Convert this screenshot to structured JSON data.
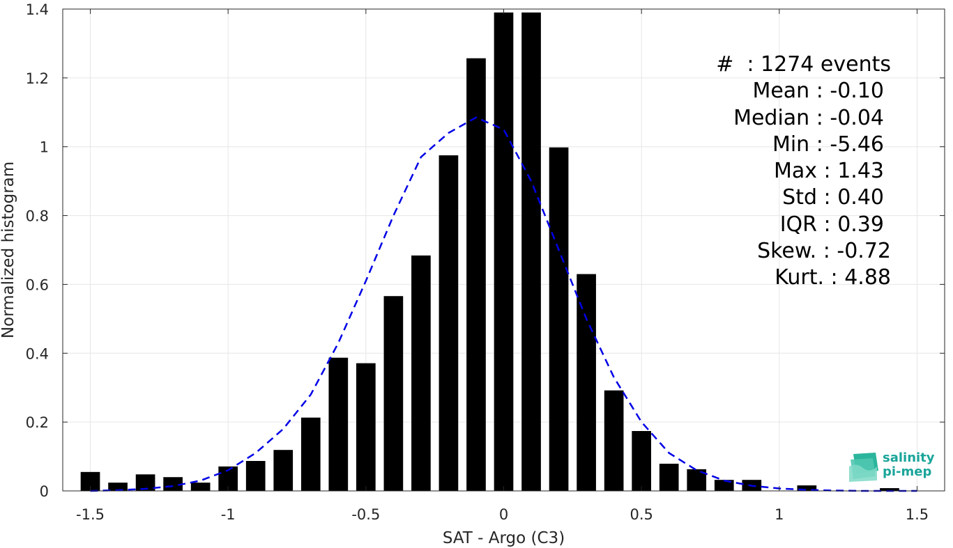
{
  "chart_data": {
    "type": "bar",
    "xlabel": "SAT - Argo (C3)",
    "ylabel": "Normalized histogram",
    "xlim": [
      -1.6,
      1.6
    ],
    "ylim": [
      0,
      1.4
    ],
    "xticks": [
      "-1.5",
      "-1",
      "-0.5",
      "0",
      "0.5",
      "1",
      "1.5"
    ],
    "yticks": [
      "0",
      "0.2",
      "0.4",
      "0.6",
      "0.8",
      "1",
      "1.2",
      "1.4"
    ],
    "grid": true,
    "bar_color": "#000000",
    "fit_color": "#0000e6",
    "bin_centers": [
      -1.5,
      -1.4,
      -1.3,
      -1.2,
      -1.1,
      -1.0,
      -0.9,
      -0.8,
      -0.7,
      -0.6,
      -0.5,
      -0.4,
      -0.3,
      -0.2,
      -0.1,
      0.0,
      0.1,
      0.2,
      0.3,
      0.4,
      0.5,
      0.6,
      0.7,
      0.8,
      0.9,
      1.0,
      1.1,
      1.2,
      1.3,
      1.4,
      1.5
    ],
    "values": [
      0.055,
      0.024,
      0.048,
      0.04,
      0.024,
      0.071,
      0.087,
      0.119,
      0.213,
      0.387,
      0.371,
      0.566,
      0.684,
      0.975,
      1.257,
      1.39,
      1.39,
      0.998,
      0.63,
      0.292,
      0.174,
      0.079,
      0.063,
      0.032,
      0.032,
      0.0,
      0.016,
      0.0,
      0.0,
      0.008,
      0.0
    ],
    "fit_curve": {
      "style": "dashed",
      "x": [
        -1.5,
        -1.4,
        -1.3,
        -1.2,
        -1.1,
        -1.0,
        -0.9,
        -0.8,
        -0.7,
        -0.6,
        -0.5,
        -0.4,
        -0.3,
        -0.2,
        -0.1,
        0.0,
        0.1,
        0.2,
        0.3,
        0.4,
        0.5,
        0.6,
        0.7,
        0.8,
        0.9,
        1.0,
        1.1,
        1.2,
        1.3,
        1.4,
        1.5
      ],
      "y": [
        0.0,
        0.002,
        0.006,
        0.014,
        0.03,
        0.06,
        0.11,
        0.18,
        0.28,
        0.43,
        0.61,
        0.8,
        0.97,
        1.04,
        1.085,
        1.05,
        0.9,
        0.7,
        0.5,
        0.33,
        0.2,
        0.11,
        0.06,
        0.03,
        0.015,
        0.007,
        0.003,
        0.001,
        0.0,
        0.0,
        0.0
      ]
    }
  },
  "stats": [
    "#  : 1274 events",
    "Mean : -0.10",
    "Median : -0.04",
    "Min : -5.46",
    "Max : 1.43",
    "Std : 0.40",
    "IQR : 0.39",
    "Skew. : -0.72",
    "Kurt. : 4.88"
  ],
  "logo": {
    "line1": "salinity",
    "line2": "pi-mep",
    "color": "#1aa59a"
  }
}
